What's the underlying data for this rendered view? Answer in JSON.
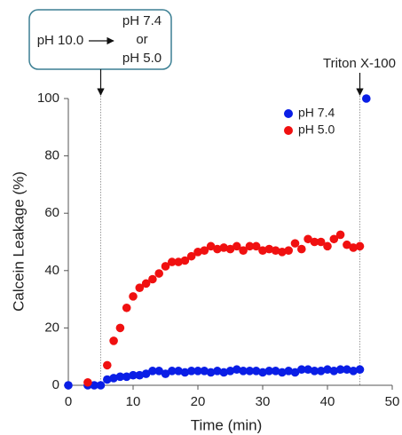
{
  "chart_data": {
    "type": "scatter",
    "xlabel": "Time (min)",
    "ylabel": "Calcein Leakage (%)",
    "xlim": [
      0,
      50
    ],
    "xticks": [
      0,
      10,
      20,
      30,
      40,
      50
    ],
    "ylim": [
      0,
      100
    ],
    "yticks": [
      0,
      20,
      40,
      60,
      80,
      100
    ],
    "grid": false,
    "legend": "upper right",
    "vlines": [
      5,
      45
    ],
    "annotations": {
      "box": [
        "pH 10.0",
        "pH 7.4",
        "or",
        "pH 5.0"
      ],
      "triton": "Triton X-100"
    },
    "series": [
      {
        "name": "pH 7.4",
        "color": "#0a1ee6",
        "x": [
          0,
          3,
          4,
          5,
          6,
          7,
          8,
          9,
          10,
          11,
          12,
          13,
          14,
          15,
          16,
          17,
          18,
          19,
          20,
          21,
          22,
          23,
          24,
          25,
          26,
          27,
          28,
          29,
          30,
          31,
          32,
          33,
          34,
          35,
          36,
          37,
          38,
          39,
          40,
          41,
          42,
          43,
          44,
          45,
          46
        ],
        "values": [
          0,
          0,
          0,
          0,
          2,
          2.5,
          3,
          3,
          3.5,
          3.5,
          4,
          5,
          5,
          4,
          5,
          5,
          4.5,
          5,
          5,
          5,
          4.5,
          5,
          4.5,
          5,
          5.5,
          5,
          5,
          5,
          4.5,
          5,
          5,
          4.5,
          5,
          4.5,
          5.5,
          5.5,
          5,
          5,
          5.5,
          5,
          5.5,
          5.5,
          5,
          5.5,
          100
        ]
      },
      {
        "name": "pH 5.0",
        "color": "#f01010",
        "x": [
          3,
          6,
          7,
          8,
          9,
          10,
          11,
          12,
          13,
          14,
          15,
          16,
          17,
          18,
          19,
          20,
          21,
          22,
          23,
          24,
          25,
          26,
          27,
          28,
          29,
          30,
          31,
          32,
          33,
          34,
          35,
          36,
          37,
          38,
          39,
          40,
          41,
          42,
          43,
          44,
          45
        ],
        "values": [
          1,
          7,
          15.5,
          20,
          27,
          31,
          34,
          35.5,
          37,
          39,
          41.5,
          43,
          43,
          43.5,
          45,
          46.5,
          47,
          48.5,
          47.5,
          48,
          47.5,
          48.5,
          47,
          48.5,
          48.5,
          47,
          47.5,
          47,
          46.5,
          47,
          49.5,
          47.5,
          51,
          50,
          50,
          48.5,
          51,
          52.5,
          49,
          48,
          48.5
        ]
      }
    ]
  }
}
